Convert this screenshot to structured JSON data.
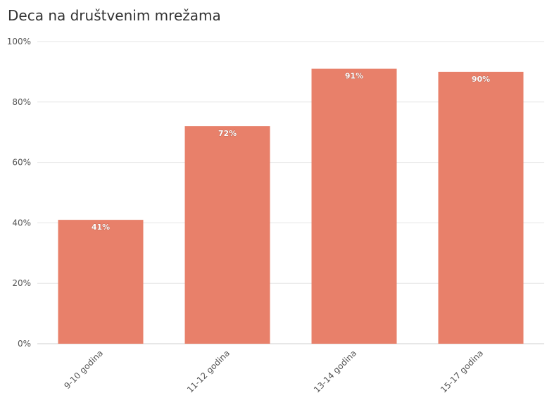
{
  "chart_data": {
    "type": "bar",
    "title": "Deca na društvenim mrežama",
    "categories": [
      "9-10 godina",
      "11-12 godina",
      "13-14 godina",
      "15-17 godina"
    ],
    "values": [
      41,
      72,
      91,
      90
    ],
    "value_labels": [
      "41%",
      "72%",
      "91%",
      "90%"
    ],
    "ylim": [
      0,
      100
    ],
    "yticks": [
      "0%",
      "20%",
      "40%",
      "60%",
      "80%",
      "100%"
    ],
    "ytick_values": [
      0,
      20,
      40,
      60,
      80,
      100
    ],
    "xlabel": "",
    "ylabel": "",
    "grid": true,
    "legend": false,
    "bar_color": "#e8806a"
  }
}
